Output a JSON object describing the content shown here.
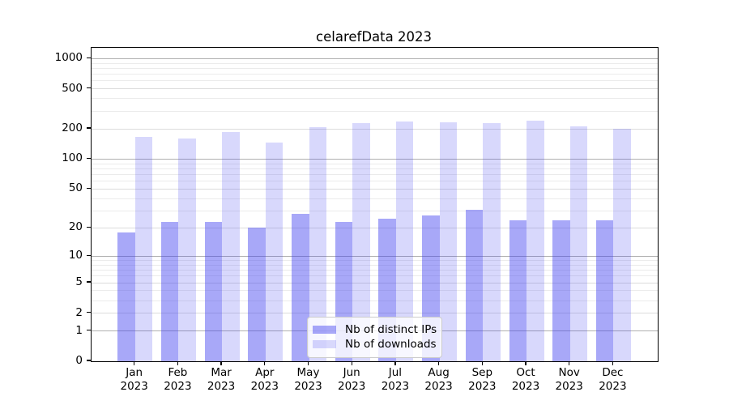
{
  "chart_data": {
    "type": "bar",
    "title": "celarefData 2023",
    "categories": [
      "Jan",
      "Feb",
      "Mar",
      "Apr",
      "May",
      "Jun",
      "Jul",
      "Aug",
      "Sep",
      "Oct",
      "Nov",
      "Dec"
    ],
    "category_year": "2023",
    "series": [
      {
        "name": "Nb of distinct IPs",
        "color": "rgba(62,62,240,0.45)",
        "solid_color": "#a6a6f4",
        "values": [
          18,
          23,
          23,
          20,
          28,
          23,
          25,
          27,
          31,
          24,
          24,
          24
        ]
      },
      {
        "name": "Nb of downloads",
        "color": "rgba(62,62,240,0.20)",
        "solid_color": "#d9d9f8",
        "values": [
          167,
          160,
          187,
          145,
          208,
          227,
          235,
          232,
          228,
          240,
          212,
          202
        ]
      }
    ],
    "yscale": "log1p",
    "ylim": [
      0,
      1280
    ],
    "y_ticks": [
      0,
      1,
      2,
      5,
      10,
      20,
      50,
      100,
      200,
      500,
      1000
    ],
    "y_major_grid": [
      1,
      10,
      100,
      1000
    ],
    "y_labeled_grid": [
      2,
      5,
      20,
      50,
      200,
      500
    ],
    "y_minor_grid": [
      3,
      4,
      6,
      7,
      8,
      9,
      30,
      40,
      60,
      70,
      80,
      90,
      300,
      400,
      600,
      700,
      800,
      900
    ],
    "grid": "both",
    "legend_position": "lower-center-inside",
    "colors": {
      "grid_major": "#b0b0b0",
      "grid_labeled": "#dcdcdc",
      "grid_minor": "#ebebeb",
      "axis": "#000000",
      "text": "#000000",
      "legend_border": "#cccccc"
    }
  }
}
